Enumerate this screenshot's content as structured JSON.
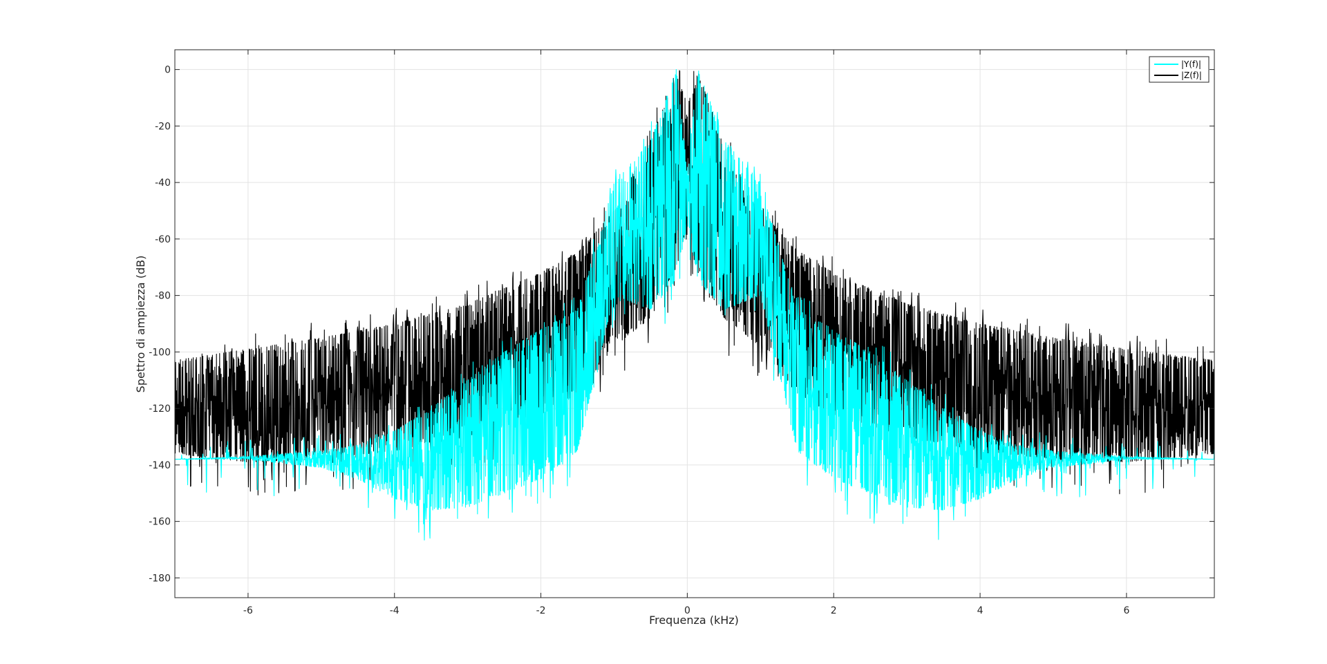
{
  "chart_data": {
    "type": "line",
    "xlabel": "Frequenza (kHz)",
    "ylabel": "Spettro di ampiezza (dB)",
    "xlim": [
      -7,
      7.2
    ],
    "ylim": [
      -187,
      7
    ],
    "x_ticks": [
      -6,
      -4,
      -2,
      0,
      2,
      4,
      6
    ],
    "y_ticks": [
      0,
      -20,
      -40,
      -60,
      -80,
      -100,
      -120,
      -140,
      -160,
      -180
    ],
    "grid": true,
    "legend_position": "top-right",
    "series": [
      {
        "name": "|Z(f)|",
        "color": "#000000",
        "upper_envelope": {
          "x": [
            -7,
            -6,
            -5,
            -4,
            -3,
            -2,
            -1.5,
            -1,
            -0.5,
            -0.15,
            0,
            0.15,
            0.5,
            1,
            1.5,
            2,
            3,
            4,
            5,
            6,
            7.2
          ],
          "y": [
            -103,
            -99,
            -95,
            -90,
            -83,
            -72,
            -65,
            -50,
            -25,
            -2,
            -12,
            -1,
            -27,
            -50,
            -64,
            -72,
            -83,
            -90,
            -95,
            -99,
            -103
          ]
        },
        "lower_envelope": {
          "x": [
            -7,
            -6,
            -5,
            -4,
            -3,
            -2,
            -1.5,
            -1,
            -0.5,
            -0.15,
            0,
            0.15,
            0.5,
            1,
            1.5,
            2,
            3,
            4,
            5,
            6,
            7.2
          ],
          "y": [
            -136,
            -139,
            -138,
            -135,
            -130,
            -122,
            -115,
            -98,
            -88,
            -70,
            -60,
            -72,
            -88,
            -98,
            -115,
            -122,
            -130,
            -135,
            -138,
            -139,
            -136
          ]
        }
      },
      {
        "name": "|Y(f)|",
        "color": "#00ffff",
        "upper_envelope": {
          "x": [
            -7,
            -6,
            -5,
            -4.5,
            -4,
            -3.5,
            -3,
            -2.5,
            -2,
            -1.5,
            -1,
            -0.5,
            -0.15,
            0,
            0.15,
            0.5,
            1,
            1.5,
            2,
            2.5,
            3,
            3.5,
            4,
            4.5,
            5,
            6,
            7.2
          ],
          "y": [
            -138,
            -137,
            -135,
            -133,
            -128,
            -120,
            -110,
            -100,
            -92,
            -85,
            -40,
            -25,
            0,
            -35,
            0,
            -25,
            -40,
            -85,
            -92,
            -100,
            -110,
            -120,
            -128,
            -133,
            -135,
            -137,
            -138
          ]
        },
        "lower_envelope": {
          "x": [
            -7,
            -6,
            -5,
            -4.5,
            -4,
            -3.5,
            -3,
            -2.5,
            -2,
            -1.5,
            -1,
            -0.5,
            -0.15,
            0,
            0.15,
            0.5,
            1,
            1.5,
            2,
            2.5,
            3,
            3.5,
            4,
            4.5,
            5,
            6,
            7.2
          ],
          "y": [
            -138,
            -138,
            -141,
            -145,
            -152,
            -156,
            -155,
            -150,
            -145,
            -135,
            -80,
            -85,
            -75,
            -55,
            -75,
            -85,
            -80,
            -135,
            -145,
            -150,
            -155,
            -156,
            -152,
            -145,
            -141,
            -138,
            -138
          ]
        }
      }
    ]
  },
  "legend": {
    "entries": [
      "|Y(f)|",
      "|Z(f)|"
    ]
  }
}
